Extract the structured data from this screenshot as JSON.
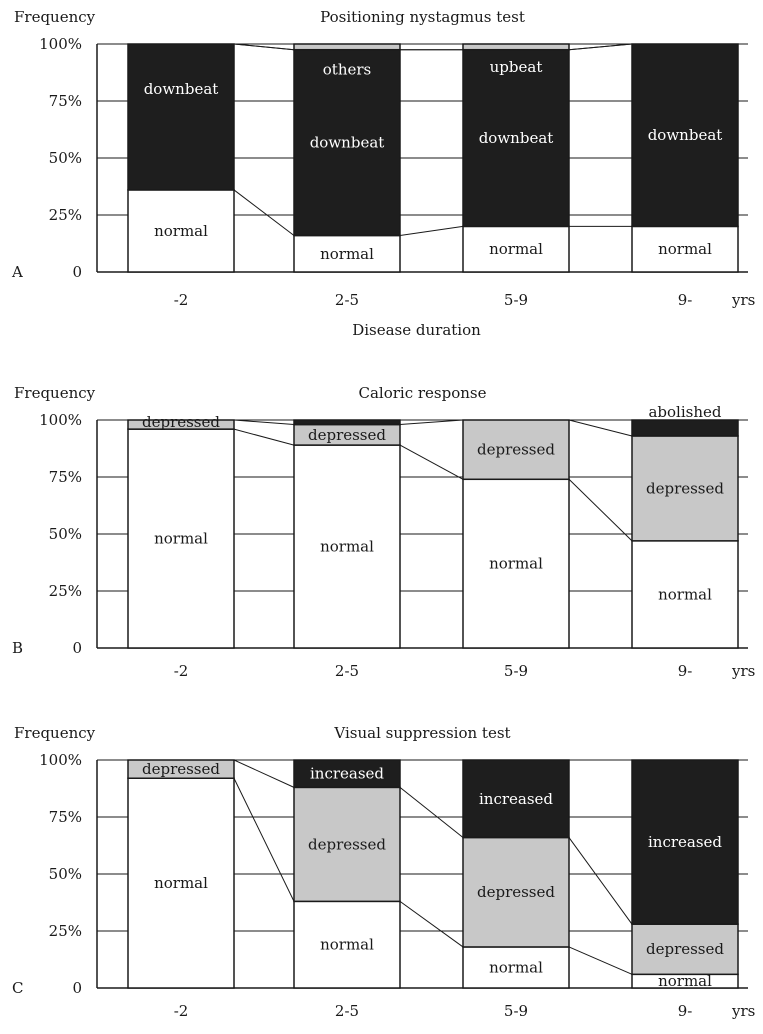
{
  "colors": {
    "normal": "#ffffff",
    "depressed": "#c8c8c8",
    "upbeat": "#c8c8c8",
    "others": "#1e1e1e",
    "downbeat": "#1e1e1e",
    "abolished": "#1e1e1e",
    "increased": "#1e1e1e",
    "axis": "#1a1a1a",
    "grid": "#1a1a1a",
    "dark_label": "#ffffff",
    "light_label": "#1a1a1a"
  },
  "chart_data": [
    {
      "type": "bar",
      "stacked": true,
      "panel_label": "A",
      "title": "Positioning nystagmus test",
      "ylabel": "Frequency",
      "xlabel": "Disease duration",
      "x_unit": "yrs",
      "categories": [
        "-2",
        "2-5",
        "5-9",
        "9-"
      ],
      "yticks": [
        "0",
        "25%",
        "50%",
        "75%",
        "100%"
      ],
      "ylim": [
        0,
        100
      ],
      "grid": true,
      "series": [
        {
          "name": "normal",
          "values": [
            36,
            16,
            20,
            20
          ],
          "labels": [
            "normal",
            "normal",
            "normal",
            "normal"
          ]
        },
        {
          "name": "downbeat",
          "values": [
            64,
            81.5,
            77.5,
            80
          ],
          "labels": [
            "downbeat",
            "downbeat",
            "downbeat",
            "downbeat"
          ]
        },
        {
          "name": "others",
          "values": [
            0,
            0,
            0,
            0
          ],
          "labels": [
            "",
            "others",
            "",
            ""
          ]
        },
        {
          "name": "upbeat",
          "values": [
            0,
            2.5,
            2.5,
            0
          ],
          "labels": [
            "",
            "",
            "upbeat",
            ""
          ]
        }
      ]
    },
    {
      "type": "bar",
      "stacked": true,
      "panel_label": "B",
      "title": "Caloric response",
      "ylabel": "Frequency",
      "xlabel": "",
      "x_unit": "yrs",
      "categories": [
        "-2",
        "2-5",
        "5-9",
        "9-"
      ],
      "yticks": [
        "0",
        "25%",
        "50%",
        "75%",
        "100%"
      ],
      "ylim": [
        0,
        100
      ],
      "grid": true,
      "series": [
        {
          "name": "normal",
          "values": [
            96,
            89,
            74,
            47
          ],
          "labels": [
            "normal",
            "normal",
            "normal",
            "normal"
          ]
        },
        {
          "name": "depressed",
          "values": [
            4,
            9,
            26,
            46
          ],
          "labels": [
            "depressed",
            "depressed",
            "depressed",
            "depressed"
          ]
        },
        {
          "name": "abolished",
          "values": [
            0,
            2,
            0,
            7
          ],
          "labels": [
            "",
            "",
            "",
            "abolished"
          ]
        }
      ]
    },
    {
      "type": "bar",
      "stacked": true,
      "panel_label": "C",
      "title": "Visual suppression test",
      "ylabel": "Frequency",
      "xlabel": "",
      "x_unit": "yrs",
      "categories": [
        "-2",
        "2-5",
        "5-9",
        "9-"
      ],
      "yticks": [
        "0",
        "25%",
        "50%",
        "75%",
        "100%"
      ],
      "ylim": [
        0,
        100
      ],
      "grid": true,
      "series": [
        {
          "name": "normal",
          "values": [
            92,
            38,
            18,
            6
          ],
          "labels": [
            "normal",
            "normal",
            "normal",
            "normal"
          ]
        },
        {
          "name": "depressed",
          "values": [
            8,
            50,
            48,
            22
          ],
          "labels": [
            "depressed",
            "depressed",
            "depressed",
            "depressed"
          ]
        },
        {
          "name": "increased",
          "values": [
            0,
            12,
            34,
            72
          ],
          "labels": [
            "",
            "increased",
            "increased",
            "increased"
          ]
        }
      ]
    }
  ]
}
